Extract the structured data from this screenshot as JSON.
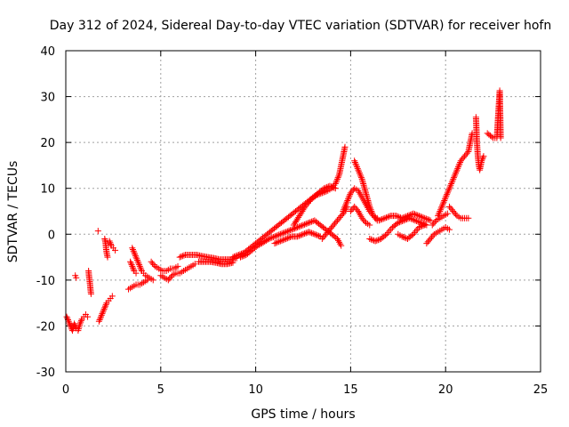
{
  "chart_data": {
    "type": "scatter",
    "title": "Day 312 of 2024, Sidereal Day-to-day VTEC variation (SDTVAR) for receiver hofn",
    "xlabel": "GPS time / hours",
    "ylabel": "SDTVAR / TECUs",
    "xlim": [
      0,
      25
    ],
    "ylim": [
      -30,
      40
    ],
    "xticks": [
      0,
      5,
      10,
      15,
      20,
      25
    ],
    "yticks": [
      -30,
      -20,
      -10,
      0,
      10,
      20,
      30,
      40
    ],
    "grid": true,
    "marker": "+",
    "color": "#ff0000",
    "series": [
      {
        "name": "SDTVAR",
        "segments": [
          [
            [
              0.05,
              -18
            ],
            [
              0.15,
              -19
            ],
            [
              0.25,
              -20
            ],
            [
              0.35,
              -21
            ],
            [
              0.45,
              -19.5
            ],
            [
              0.55,
              -20.5
            ],
            [
              0.65,
              -21
            ],
            [
              0.75,
              -19.5
            ],
            [
              0.85,
              -18.5
            ],
            [
              0.95,
              -18
            ],
            [
              1.05,
              -17.5
            ],
            [
              1.15,
              -18
            ]
          ],
          [
            [
              0.5,
              -9
            ],
            [
              0.55,
              -9.5
            ]
          ],
          [
            [
              1.2,
              -8
            ],
            [
              1.22,
              -9
            ],
            [
              1.25,
              -10
            ],
            [
              1.28,
              -11
            ],
            [
              1.3,
              -12
            ],
            [
              1.33,
              -13
            ]
          ],
          [
            [
              1.7,
              0.7
            ]
          ],
          [
            [
              1.75,
              -19
            ],
            [
              1.85,
              -18
            ],
            [
              1.95,
              -17
            ],
            [
              2.05,
              -16
            ],
            [
              2.15,
              -15
            ],
            [
              2.25,
              -14.5
            ],
            [
              2.35,
              -14
            ],
            [
              2.45,
              -13.5
            ]
          ],
          [
            [
              2.05,
              -1
            ],
            [
              2.1,
              -2
            ],
            [
              2.12,
              -3
            ],
            [
              2.15,
              -4
            ],
            [
              2.2,
              -5
            ]
          ],
          [
            [
              2.3,
              -1.5
            ],
            [
              2.4,
              -2.5
            ],
            [
              2.5,
              -3
            ],
            [
              2.6,
              -3.5
            ]
          ],
          [
            [
              3.3,
              -12
            ],
            [
              3.5,
              -11.5
            ],
            [
              3.7,
              -11
            ],
            [
              3.9,
              -11
            ],
            [
              4.1,
              -10.5
            ],
            [
              4.3,
              -10
            ]
          ],
          [
            [
              3.5,
              -3
            ],
            [
              3.6,
              -4
            ],
            [
              3.7,
              -5
            ],
            [
              3.8,
              -6
            ],
            [
              3.9,
              -7
            ],
            [
              4.0,
              -8
            ],
            [
              4.1,
              -8.5
            ],
            [
              4.2,
              -9
            ],
            [
              4.4,
              -9.5
            ],
            [
              4.6,
              -10
            ]
          ],
          [
            [
              3.4,
              -6
            ],
            [
              3.5,
              -7
            ],
            [
              3.6,
              -8
            ],
            [
              3.7,
              -8.5
            ]
          ],
          [
            [
              4.5,
              -6
            ],
            [
              4.7,
              -7
            ],
            [
              4.9,
              -7.5
            ],
            [
              5.1,
              -8
            ],
            [
              5.3,
              -8
            ],
            [
              5.5,
              -7.5
            ],
            [
              5.7,
              -7.5
            ],
            [
              5.9,
              -7
            ]
          ],
          [
            [
              5.0,
              -9
            ],
            [
              5.2,
              -9.5
            ],
            [
              5.4,
              -10
            ],
            [
              5.6,
              -9
            ],
            [
              5.8,
              -8.5
            ],
            [
              6.0,
              -8.5
            ],
            [
              6.2,
              -8
            ],
            [
              6.4,
              -7.5
            ],
            [
              6.6,
              -7
            ],
            [
              6.8,
              -6.5
            ]
          ],
          [
            [
              6.0,
              -5
            ],
            [
              6.3,
              -4.5
            ],
            [
              6.6,
              -4.5
            ],
            [
              6.9,
              -4.5
            ],
            [
              7.2,
              -4.8
            ],
            [
              7.5,
              -5
            ],
            [
              7.8,
              -5.2
            ],
            [
              8.1,
              -5.5
            ],
            [
              8.4,
              -5.5
            ],
            [
              8.7,
              -5.5
            ],
            [
              9.0,
              -5.2
            ]
          ],
          [
            [
              7.0,
              -6
            ],
            [
              7.3,
              -6
            ],
            [
              7.6,
              -6
            ],
            [
              7.9,
              -6.2
            ],
            [
              8.2,
              -6.5
            ],
            [
              8.5,
              -6.5
            ],
            [
              8.8,
              -6.2
            ]
          ],
          [
            [
              8.8,
              -5
            ],
            [
              9.1,
              -4.5
            ],
            [
              9.4,
              -4
            ],
            [
              9.7,
              -3
            ],
            [
              10.0,
              -2
            ],
            [
              10.3,
              -1
            ],
            [
              10.6,
              0
            ],
            [
              10.9,
              1
            ],
            [
              11.2,
              2
            ],
            [
              11.5,
              3
            ],
            [
              11.8,
              4
            ],
            [
              12.1,
              5
            ],
            [
              12.4,
              6
            ],
            [
              12.7,
              7
            ],
            [
              13.0,
              8
            ],
            [
              13.3,
              9
            ],
            [
              13.6,
              10
            ],
            [
              13.9,
              10.5
            ],
            [
              14.2,
              10
            ]
          ],
          [
            [
              9.2,
              -5
            ],
            [
              9.5,
              -4.5
            ],
            [
              9.8,
              -3.5
            ],
            [
              10.1,
              -2.5
            ],
            [
              10.4,
              -1.8
            ],
            [
              10.7,
              -1
            ],
            [
              11.0,
              -0.5
            ],
            [
              11.3,
              0
            ],
            [
              11.6,
              0.5
            ],
            [
              11.9,
              1
            ],
            [
              12.2,
              1.5
            ],
            [
              12.5,
              2
            ],
            [
              12.8,
              2.5
            ],
            [
              13.1,
              3
            ],
            [
              13.4,
              2
            ],
            [
              13.7,
              1
            ],
            [
              14.0,
              0
            ],
            [
              14.3,
              -1
            ],
            [
              14.5,
              -2.5
            ]
          ],
          [
            [
              11.0,
              -2
            ],
            [
              11.3,
              -1.5
            ],
            [
              11.6,
              -1
            ],
            [
              11.9,
              -0.5
            ],
            [
              12.2,
              -0.5
            ],
            [
              12.5,
              0
            ],
            [
              12.8,
              0.5
            ],
            [
              13.1,
              0
            ],
            [
              13.4,
              -0.5
            ]
          ],
          [
            [
              12.0,
              2
            ],
            [
              12.3,
              4
            ],
            [
              12.6,
              6
            ],
            [
              12.9,
              7.5
            ],
            [
              13.2,
              8.5
            ],
            [
              13.5,
              9
            ],
            [
              13.8,
              9.5
            ],
            [
              14.0,
              10
            ],
            [
              14.2,
              11
            ],
            [
              14.4,
              13
            ],
            [
              14.5,
              15
            ],
            [
              14.6,
              17
            ],
            [
              14.7,
              19
            ]
          ],
          [
            [
              13.5,
              -1
            ],
            [
              13.7,
              0
            ],
            [
              13.9,
              1
            ],
            [
              14.1,
              2
            ],
            [
              14.3,
              3
            ],
            [
              14.5,
              4
            ],
            [
              14.7,
              5
            ],
            [
              14.8,
              6
            ]
          ],
          [
            [
              14.6,
              5
            ],
            [
              14.8,
              7
            ],
            [
              15.0,
              9
            ],
            [
              15.2,
              10
            ],
            [
              15.4,
              9.5
            ],
            [
              15.6,
              8
            ],
            [
              15.8,
              6.5
            ],
            [
              16.0,
              5
            ],
            [
              16.2,
              4
            ],
            [
              16.4,
              3.5
            ]
          ],
          [
            [
              15.2,
              16
            ],
            [
              15.4,
              14
            ],
            [
              15.6,
              12
            ],
            [
              15.8,
              9
            ],
            [
              16.0,
              6
            ],
            [
              16.2,
              4
            ],
            [
              16.4,
              3
            ]
          ],
          [
            [
              15.0,
              5
            ],
            [
              15.2,
              6
            ],
            [
              15.4,
              5
            ],
            [
              15.6,
              3.5
            ],
            [
              15.8,
              2.5
            ],
            [
              16.0,
              2
            ]
          ],
          [
            [
              16.0,
              -1
            ],
            [
              16.3,
              -1.5
            ],
            [
              16.6,
              -1
            ],
            [
              16.9,
              0
            ],
            [
              17.2,
              1.5
            ],
            [
              17.5,
              2.5
            ],
            [
              17.8,
              3
            ],
            [
              18.1,
              3.5
            ],
            [
              18.4,
              3
            ],
            [
              18.7,
              2.5
            ],
            [
              19.0,
              2
            ]
          ],
          [
            [
              16.5,
              3
            ],
            [
              16.8,
              3.5
            ],
            [
              17.1,
              4
            ],
            [
              17.4,
              4
            ],
            [
              17.7,
              3.5
            ],
            [
              18.0,
              4
            ],
            [
              18.3,
              4.5
            ],
            [
              18.6,
              4
            ],
            [
              18.9,
              3.5
            ],
            [
              19.2,
              3
            ]
          ],
          [
            [
              17.5,
              0
            ],
            [
              17.7,
              -0.5
            ],
            [
              18.0,
              -1
            ],
            [
              18.3,
              0
            ],
            [
              18.6,
              1.5
            ],
            [
              18.9,
              2
            ]
          ],
          [
            [
              19.0,
              -2
            ],
            [
              19.2,
              -1
            ],
            [
              19.4,
              0
            ],
            [
              19.6,
              0.5
            ],
            [
              19.8,
              1
            ],
            [
              20.0,
              1.5
            ],
            [
              20.2,
              1
            ]
          ],
          [
            [
              19.3,
              2
            ],
            [
              19.5,
              3
            ],
            [
              19.7,
              3.5
            ],
            [
              19.9,
              4
            ],
            [
              20.1,
              4.5
            ]
          ],
          [
            [
              19.6,
              4
            ],
            [
              19.8,
              6
            ],
            [
              20.0,
              8
            ],
            [
              20.2,
              10
            ],
            [
              20.4,
              12
            ],
            [
              20.6,
              14
            ],
            [
              20.8,
              16
            ],
            [
              21.0,
              17
            ],
            [
              21.2,
              18
            ],
            [
              21.3,
              20
            ],
            [
              21.4,
              22
            ]
          ],
          [
            [
              20.2,
              6
            ],
            [
              20.4,
              5
            ],
            [
              20.6,
              4
            ],
            [
              20.8,
              3.5
            ],
            [
              21.0,
              3.5
            ],
            [
              21.2,
              3.5
            ]
          ],
          [
            [
              21.6,
              25.5
            ],
            [
              21.65,
              20
            ],
            [
              21.7,
              17
            ],
            [
              21.75,
              15
            ],
            [
              21.8,
              14
            ],
            [
              21.9,
              16
            ],
            [
              22.0,
              17
            ]
          ],
          [
            [
              22.2,
              22
            ],
            [
              22.5,
              21
            ],
            [
              22.7,
              21
            ],
            [
              22.85,
              31.3
            ],
            [
              22.9,
              21
            ]
          ]
        ]
      }
    ]
  }
}
